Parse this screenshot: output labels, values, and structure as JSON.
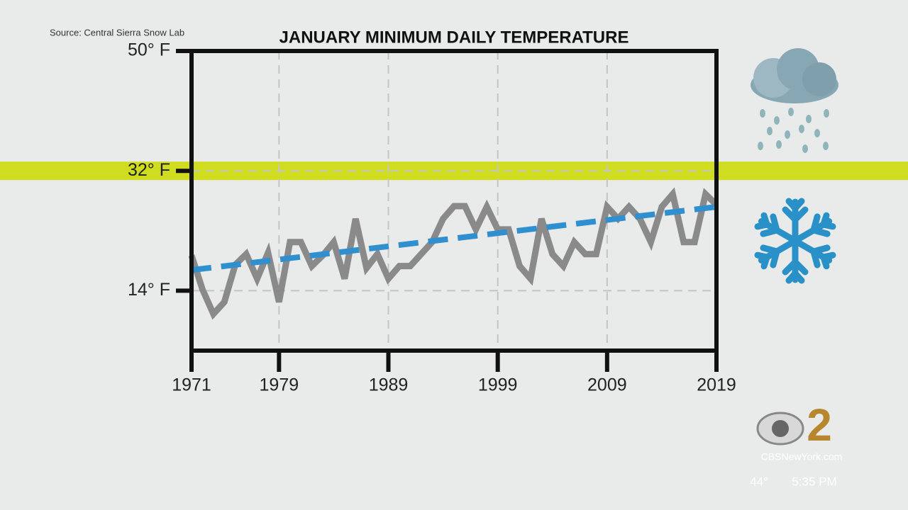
{
  "chart_data": {
    "type": "line",
    "title": "JANUARY MINIMUM DAILY TEMPERATURE",
    "source": "Source: Central Sierra Snow Lab",
    "x": [
      1971,
      1972,
      1973,
      1974,
      1975,
      1976,
      1977,
      1978,
      1979,
      1980,
      1981,
      1982,
      1983,
      1984,
      1985,
      1986,
      1987,
      1988,
      1989,
      1990,
      1991,
      1992,
      1993,
      1994,
      1995,
      1996,
      1997,
      1998,
      1999,
      2000,
      2001,
      2002,
      2003,
      2004,
      2005,
      2006,
      2007,
      2008,
      2009,
      2010,
      2011,
      2012,
      2013,
      2014,
      2015,
      2016,
      2017,
      2018,
      2019
    ],
    "series": [
      {
        "color": "#8a8a8a",
        "style": "solid",
        "values": [
          19.3,
          14.2,
          10.5,
          12.3,
          17.9,
          19.5,
          15.8,
          19.7,
          12.3,
          21.3,
          21.3,
          17.7,
          19.3,
          21.3,
          15.8,
          24.8,
          17.4,
          19.5,
          15.8,
          17.7,
          17.7,
          19.5,
          21.3,
          24.8,
          26.7,
          26.7,
          23.2,
          26.6,
          23.2,
          23.2,
          17.7,
          15.8,
          24.8,
          19.5,
          17.7,
          21.3,
          19.5,
          19.5,
          26.6,
          24.8,
          26.6,
          24.8,
          21.3,
          26.6,
          28.5,
          21.3,
          21.3,
          28.5,
          26.9
        ]
      },
      {
        "color": "#2f8fcf",
        "style": "dashed",
        "x": [
          1971,
          2019
        ],
        "values": [
          17.1,
          26.6
        ]
      }
    ],
    "xlim": [
      1971,
      2019
    ],
    "xticks": [
      1971,
      1979,
      1989,
      1999,
      2009,
      2019
    ],
    "ylim": [
      5,
      50
    ],
    "yticks": [
      {
        "value": 14,
        "label": "14° F"
      },
      {
        "value": 32,
        "label": "32° F"
      },
      {
        "value": 50,
        "label": "50° F"
      }
    ],
    "threshold": 32,
    "threshold_color": "#cfdc1f",
    "grid": true
  },
  "overlay": {
    "channel": "2",
    "site": "CBSNewYork.com",
    "temperature": "44°",
    "time": "5:35 PM"
  }
}
